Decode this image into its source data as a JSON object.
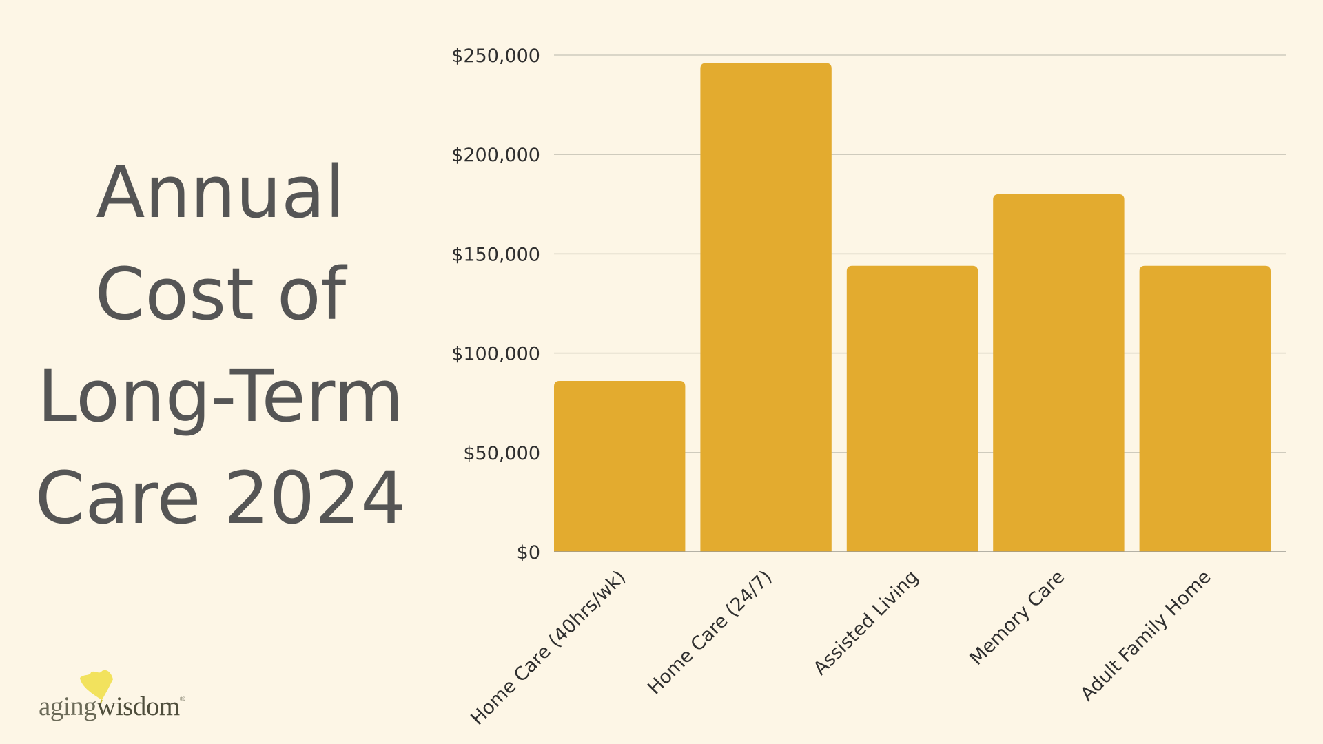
{
  "title": {
    "lines": [
      "Annual",
      "Cost of",
      "Long-Term",
      "Care 2024"
    ]
  },
  "logo": {
    "brand": "aging",
    "brand_bold": "wisdom",
    "registered": "®",
    "icon": "ginkgo-leaf-icon"
  },
  "colors": {
    "background": "#fdf6e6",
    "bar": "#e3ab2f",
    "title_text": "#555555",
    "gridline": "#cfcbbd"
  },
  "chart_data": {
    "type": "bar",
    "categories": [
      "Home Care (40hrs/wk)",
      "Home Care (24/7)",
      "Assisted Living",
      "Memory Care",
      "Adult Family Home"
    ],
    "values": [
      86000,
      246000,
      144000,
      180000,
      144000
    ],
    "ylim": [
      0,
      250000
    ],
    "yticks": [
      0,
      50000,
      100000,
      150000,
      200000,
      250000
    ],
    "ytick_labels": [
      "$0",
      "$50,000",
      "$100,000",
      "$150,000",
      "$200,000",
      "$250,000"
    ],
    "title": "",
    "xlabel": "",
    "ylabel": "",
    "grid": true,
    "legend": "none"
  }
}
